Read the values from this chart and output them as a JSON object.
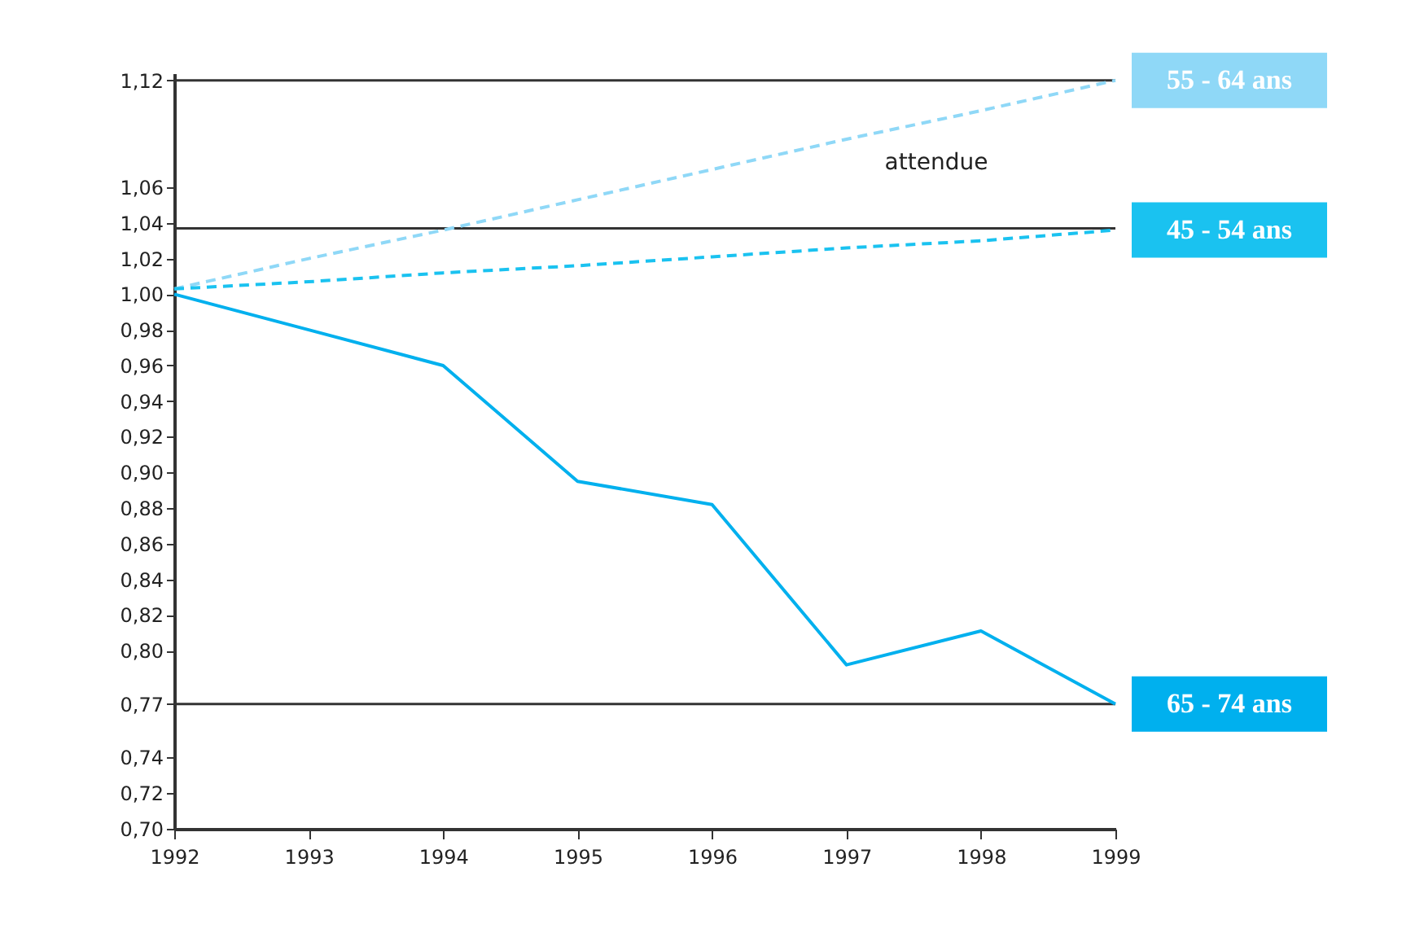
{
  "chart_data": {
    "type": "line",
    "x": [
      1992,
      1993,
      1994,
      1995,
      1996,
      1997,
      1998,
      1999
    ],
    "series": [
      {
        "name": "55 - 64 ans",
        "color": "#8fd8f7",
        "line_style": "dashed",
        "values": [
          1.003,
          1.02,
          1.036,
          1.053,
          1.07,
          1.087,
          1.103,
          1.12
        ]
      },
      {
        "name": "45 - 54 ans",
        "color": "#1ac2f0",
        "line_style": "dashed",
        "values": [
          1.003,
          1.007,
          1.012,
          1.016,
          1.021,
          1.026,
          1.03,
          1.036
        ]
      },
      {
        "name": "65 - 74 ans",
        "color": "#00b0ee",
        "line_style": "solid",
        "values": [
          1.0,
          0.98,
          0.96,
          0.895,
          0.882,
          0.792,
          0.811,
          0.77
        ]
      }
    ],
    "xlim": [
      1992,
      1999
    ],
    "xticks": [
      1992,
      1993,
      1994,
      1995,
      1996,
      1997,
      1998,
      1999
    ],
    "ylim": [
      0.7,
      1.124
    ],
    "yticks": [
      {
        "value": 0.7,
        "label": "0,70"
      },
      {
        "value": 0.72,
        "label": "0,72"
      },
      {
        "value": 0.74,
        "label": "0,74"
      },
      {
        "value": 0.77,
        "label": "0,77"
      },
      {
        "value": 0.8,
        "label": "0,80"
      },
      {
        "value": 0.82,
        "label": "0,82"
      },
      {
        "value": 0.84,
        "label": "0,84"
      },
      {
        "value": 0.86,
        "label": "0,86"
      },
      {
        "value": 0.88,
        "label": "0,88"
      },
      {
        "value": 0.9,
        "label": "0,90"
      },
      {
        "value": 0.92,
        "label": "0,92"
      },
      {
        "value": 0.94,
        "label": "0,94"
      },
      {
        "value": 0.96,
        "label": "0,96"
      },
      {
        "value": 0.98,
        "label": "0,98"
      },
      {
        "value": 1.0,
        "label": "1,00"
      },
      {
        "value": 1.02,
        "label": "1,02"
      },
      {
        "value": 1.04,
        "label": "1,04"
      },
      {
        "value": 1.06,
        "label": "1,06"
      },
      {
        "value": 1.12,
        "label": "1,12"
      }
    ],
    "ref_lines": [
      {
        "axis": "y",
        "value": 1.12,
        "color": "#333333"
      },
      {
        "axis": "y",
        "value": 1.037,
        "color": "#333333"
      },
      {
        "axis": "y",
        "value": 0.77,
        "color": "#333333"
      }
    ],
    "annotations": [
      "attendue"
    ],
    "grid": false
  }
}
